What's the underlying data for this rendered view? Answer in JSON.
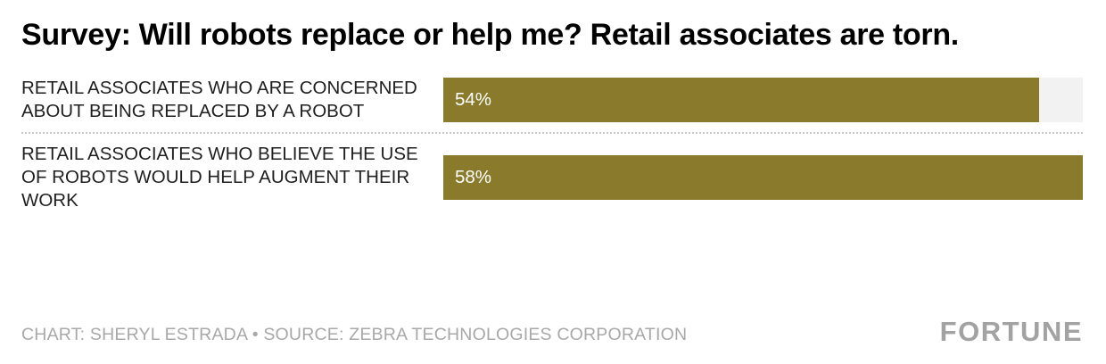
{
  "title": "Survey: Will robots replace or help me? Retail associates are torn.",
  "chart_data": {
    "type": "bar",
    "orientation": "horizontal",
    "categories": [
      "RETAIL ASSOCIATES WHO ARE CONCERNED ABOUT BEING REPLACED BY A ROBOT",
      "RETAIL ASSOCIATES WHO BELIEVE THE USE OF ROBOTS WOULD HELP AUGMENT THEIR WORK"
    ],
    "values": [
      54,
      58
    ],
    "value_labels": [
      "54%",
      "58%"
    ],
    "xlim": [
      0,
      58
    ],
    "xlabel": "",
    "ylabel": "",
    "grid": false,
    "legend": false,
    "bar_color": "#8a7a2b",
    "track_color": "#f2f2f2"
  },
  "footer": {
    "credit": "CHART: SHERYL ESTRADA • SOURCE: ZEBRA TECHNOLOGIES CORPORATION",
    "logo": "FORTUNE"
  }
}
